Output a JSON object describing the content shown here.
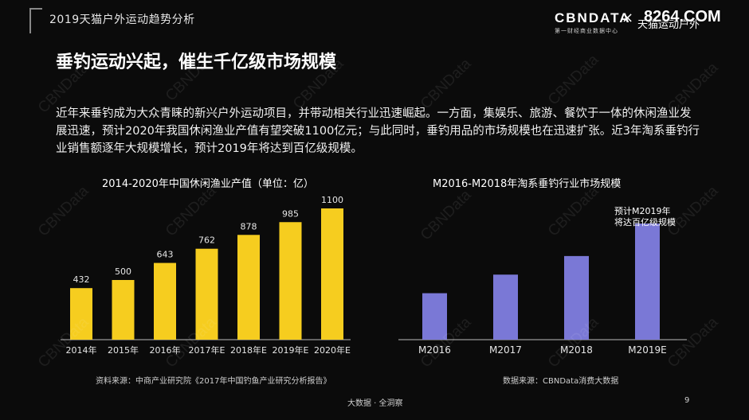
{
  "header": {
    "section_title": "2019天猫户外运动趋势分析",
    "logo_brand": "CBNDATA",
    "logo_tagline": "第一财经商业数据中心",
    "logo_separator": "×",
    "logo_partner": "天猫运动户外",
    "site_watermark": "8264.COM"
  },
  "slide": {
    "headline": "垂钓运动兴起，催生千亿级市场规模",
    "intro": "近年来垂钓成为大众青睐的新兴户外运动项目，并带动相关行业迅速崛起。一方面，集娱乐、旅游、餐饮于一体的休闲渔业发展迅速，预计2020年我国休闲渔业产值有望突破1100亿元；与此同时，垂钓用品的市场规模也在迅速扩张。近3年淘系垂钓行业销售额逐年大规模增长，预计2019年将达到百亿级规模。"
  },
  "watermark_text": "CBNData",
  "chart_data": [
    {
      "type": "bar",
      "title": "2014-2020年中国休闲渔业产值（单位：亿）",
      "categories": [
        "2014年",
        "2015年",
        "2016年",
        "2017年E",
        "2018年E",
        "2019年E",
        "2020年E"
      ],
      "values": [
        432,
        500,
        643,
        762,
        878,
        985,
        1100
      ],
      "color": "#f6cd1f",
      "ylim": [
        0,
        1100
      ],
      "source": "资料来源：中商产业研究院《2017年中国钓鱼产业研究分析报告》"
    },
    {
      "type": "bar",
      "title": "M2016-M2018年淘系垂钓行业市场规模",
      "categories": [
        "M2016",
        "M2017",
        "M2018",
        "M2019E"
      ],
      "values": [
        0.4,
        0.56,
        0.72,
        1.0
      ],
      "value_unit": "relative to M2019E (no values printed)",
      "color": "#7a78d6",
      "ylim": [
        0,
        1.0
      ],
      "annotation": [
        "预计M2019年",
        "将达百亿级规模"
      ],
      "source": "数据来源：CBNData消费大数据"
    }
  ],
  "footer": {
    "text": "大数据 · 全洞察",
    "page": "9"
  }
}
